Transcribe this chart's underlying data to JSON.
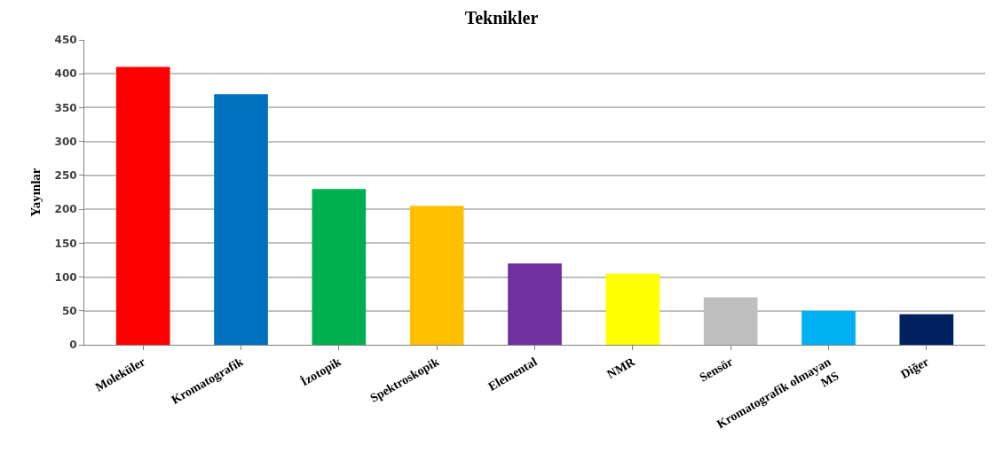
{
  "chart_data": {
    "type": "bar",
    "title": "Teknikler",
    "ylabel": "Yayınlar",
    "categories": [
      "Moleküler",
      "Kromatografik",
      "İzotopik",
      "Spektroskopik",
      "Elemental",
      "NMR",
      "Sensör",
      "Kromatografik olmayan\nMS",
      "Diğer"
    ],
    "values": [
      410,
      370,
      230,
      205,
      120,
      105,
      70,
      50,
      45
    ],
    "colors": [
      "#ff0000",
      "#0070c0",
      "#00b050",
      "#ffc000",
      "#7030a0",
      "#ffff00",
      "#bfbfbf",
      "#00b0f0",
      "#002060"
    ],
    "ylim": [
      0,
      450
    ],
    "yticks": [
      0,
      50,
      100,
      150,
      200,
      250,
      300,
      350,
      400,
      450
    ],
    "grid": "y"
  }
}
